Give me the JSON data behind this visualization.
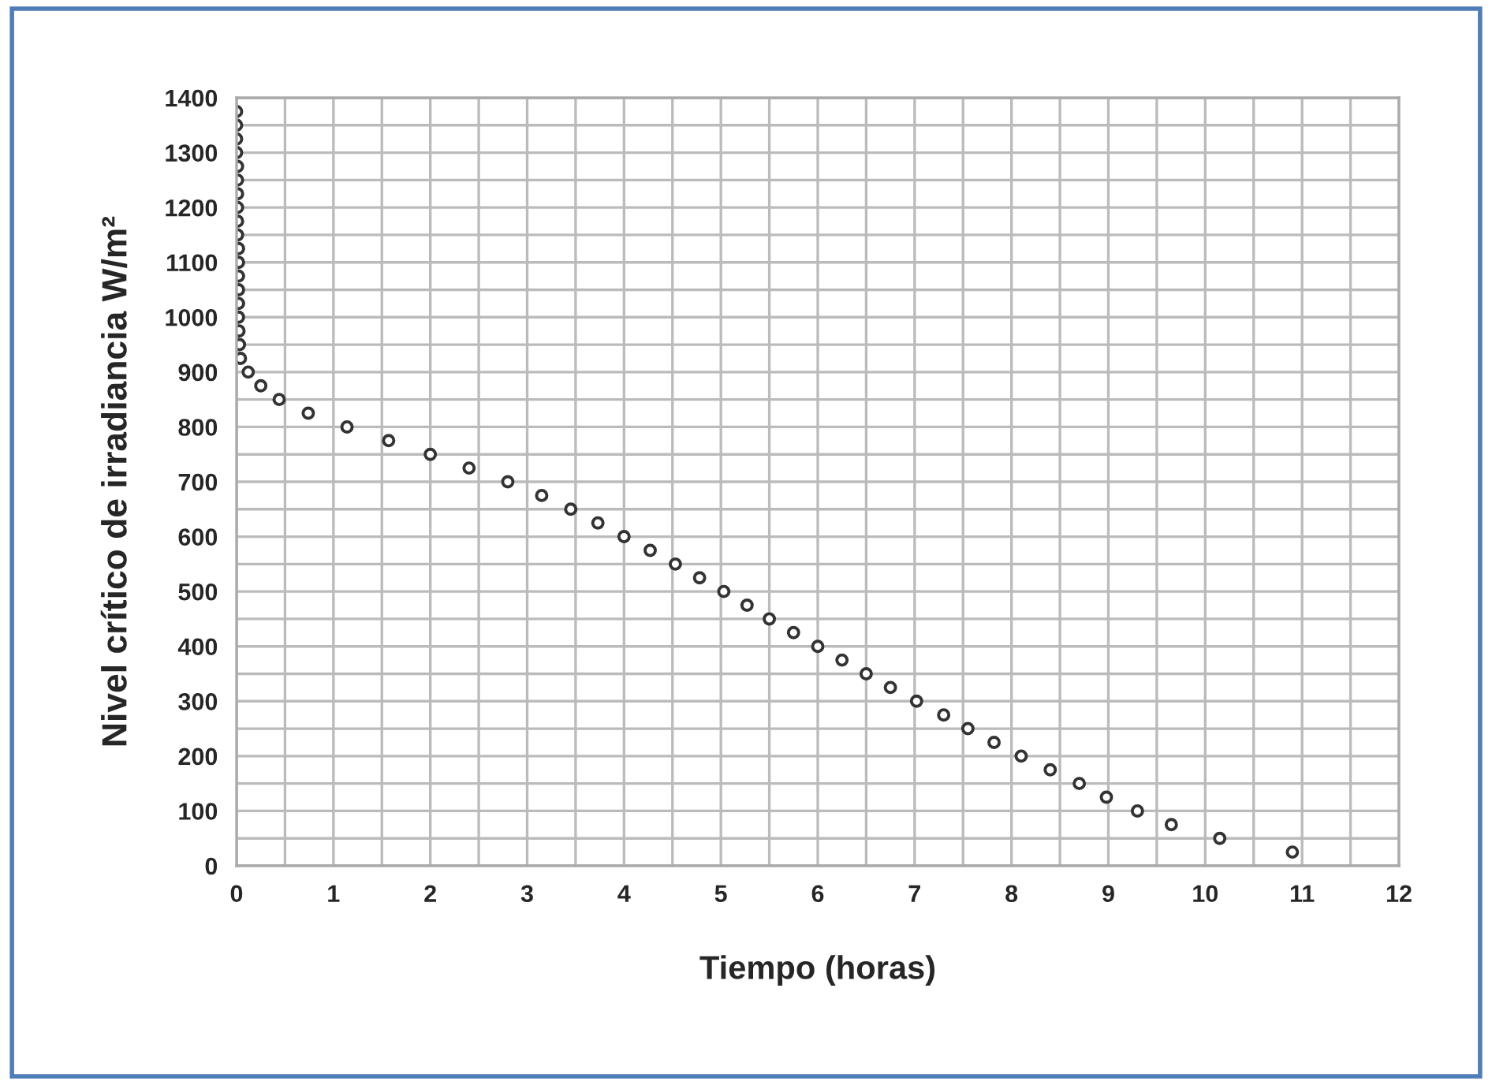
{
  "chart_data": {
    "type": "scatter",
    "xlabel": "Tiempo (horas)",
    "ylabel": "Nivel crítico de irradiancia W/m²",
    "x": [
      10.9,
      10.15,
      9.65,
      9.3,
      8.98,
      8.7,
      8.4,
      8.1,
      7.82,
      7.55,
      7.3,
      7.02,
      6.75,
      6.5,
      6.25,
      6.0,
      5.75,
      5.5,
      5.27,
      5.03,
      4.78,
      4.53,
      4.27,
      4.0,
      3.73,
      3.45,
      3.15,
      2.8,
      2.4,
      2.0,
      1.57,
      1.14,
      0.74,
      0.44,
      0.25,
      0.12,
      0.04,
      0.03,
      0.025,
      0.02,
      0.02,
      0.02,
      0.02,
      0.02,
      0.02,
      0.01,
      0.01,
      0.01,
      0.01,
      0.01,
      0.01,
      0.0,
      0.0,
      0.0,
      0.0
    ],
    "values": [
      25,
      50,
      75,
      100,
      125,
      150,
      175,
      200,
      225,
      250,
      275,
      300,
      325,
      350,
      375,
      400,
      425,
      450,
      475,
      500,
      525,
      550,
      575,
      600,
      625,
      650,
      675,
      700,
      725,
      750,
      775,
      800,
      825,
      850,
      875,
      900,
      925,
      950,
      975,
      1000,
      1025,
      1050,
      1075,
      1100,
      1125,
      1150,
      1175,
      1200,
      1225,
      1250,
      1275,
      1300,
      1325,
      1350,
      1375
    ],
    "color": "#333333",
    "marker": "circle",
    "xlim": [
      0,
      12
    ],
    "xticks": [
      0,
      1,
      2,
      3,
      4,
      5,
      6,
      7,
      8,
      9,
      10,
      11,
      12
    ],
    "ylim": [
      0,
      1400
    ],
    "yticks": [
      0,
      100,
      200,
      300,
      400,
      500,
      600,
      700,
      800,
      900,
      1000,
      1100,
      1200,
      1300,
      1400
    ],
    "grid": true,
    "legend": false
  }
}
